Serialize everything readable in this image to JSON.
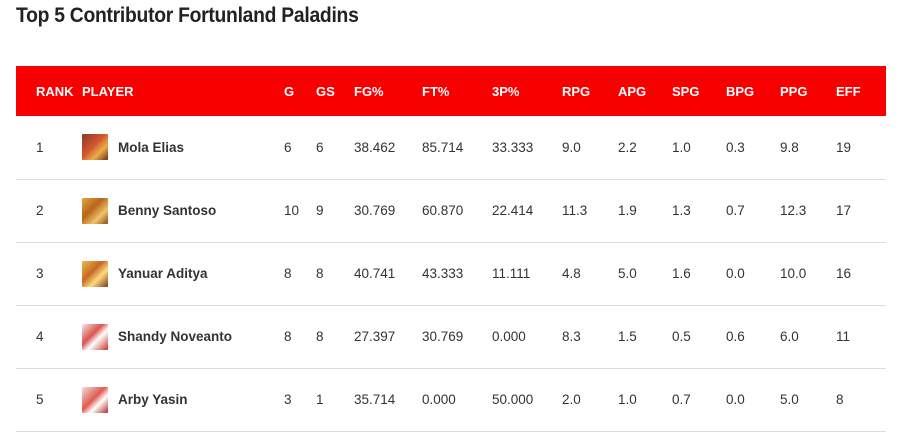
{
  "page": {
    "title": "Top 5 Contributor Fortunland Paladins"
  },
  "table": {
    "headers": {
      "rank": "RANK",
      "player": "PLAYER",
      "g": "G",
      "gs": "GS",
      "fg": "FG%",
      "ft": "FT%",
      "three": "3P%",
      "rpg": "RPG",
      "apg": "APG",
      "spg": "SPG",
      "bpg": "BPG",
      "ppg": "PPG",
      "eff": "EFF"
    },
    "rows": [
      {
        "rank": "1",
        "player": "Mola Elias",
        "g": "6",
        "gs": "6",
        "fg": "38.462",
        "ft": "85.714",
        "three": "33.333",
        "rpg": "9.0",
        "apg": "2.2",
        "spg": "1.0",
        "bpg": "0.3",
        "ppg": "9.8",
        "eff": "19"
      },
      {
        "rank": "2",
        "player": "Benny Santoso",
        "g": "10",
        "gs": "9",
        "fg": "30.769",
        "ft": "60.870",
        "three": "22.414",
        "rpg": "11.3",
        "apg": "1.9",
        "spg": "1.3",
        "bpg": "0.7",
        "ppg": "12.3",
        "eff": "17"
      },
      {
        "rank": "3",
        "player": "Yanuar Aditya",
        "g": "8",
        "gs": "8",
        "fg": "40.741",
        "ft": "43.333",
        "three": "11.111",
        "rpg": "4.8",
        "apg": "5.0",
        "spg": "1.6",
        "bpg": "0.0",
        "ppg": "10.0",
        "eff": "16"
      },
      {
        "rank": "4",
        "player": "Shandy Noveanto",
        "g": "8",
        "gs": "8",
        "fg": "27.397",
        "ft": "30.769",
        "three": "0.000",
        "rpg": "8.3",
        "apg": "1.5",
        "spg": "0.5",
        "bpg": "0.6",
        "ppg": "6.0",
        "eff": "11"
      },
      {
        "rank": "5",
        "player": "Arby Yasin",
        "g": "3",
        "gs": "1",
        "fg": "35.714",
        "ft": "0.000",
        "three": "50.000",
        "rpg": "2.0",
        "apg": "1.0",
        "spg": "0.7",
        "bpg": "0.0",
        "ppg": "5.0",
        "eff": "8"
      }
    ]
  },
  "colors": {
    "header_bg": "#f90000",
    "header_text": "#ffffff",
    "row_divider": "#dddddd"
  }
}
